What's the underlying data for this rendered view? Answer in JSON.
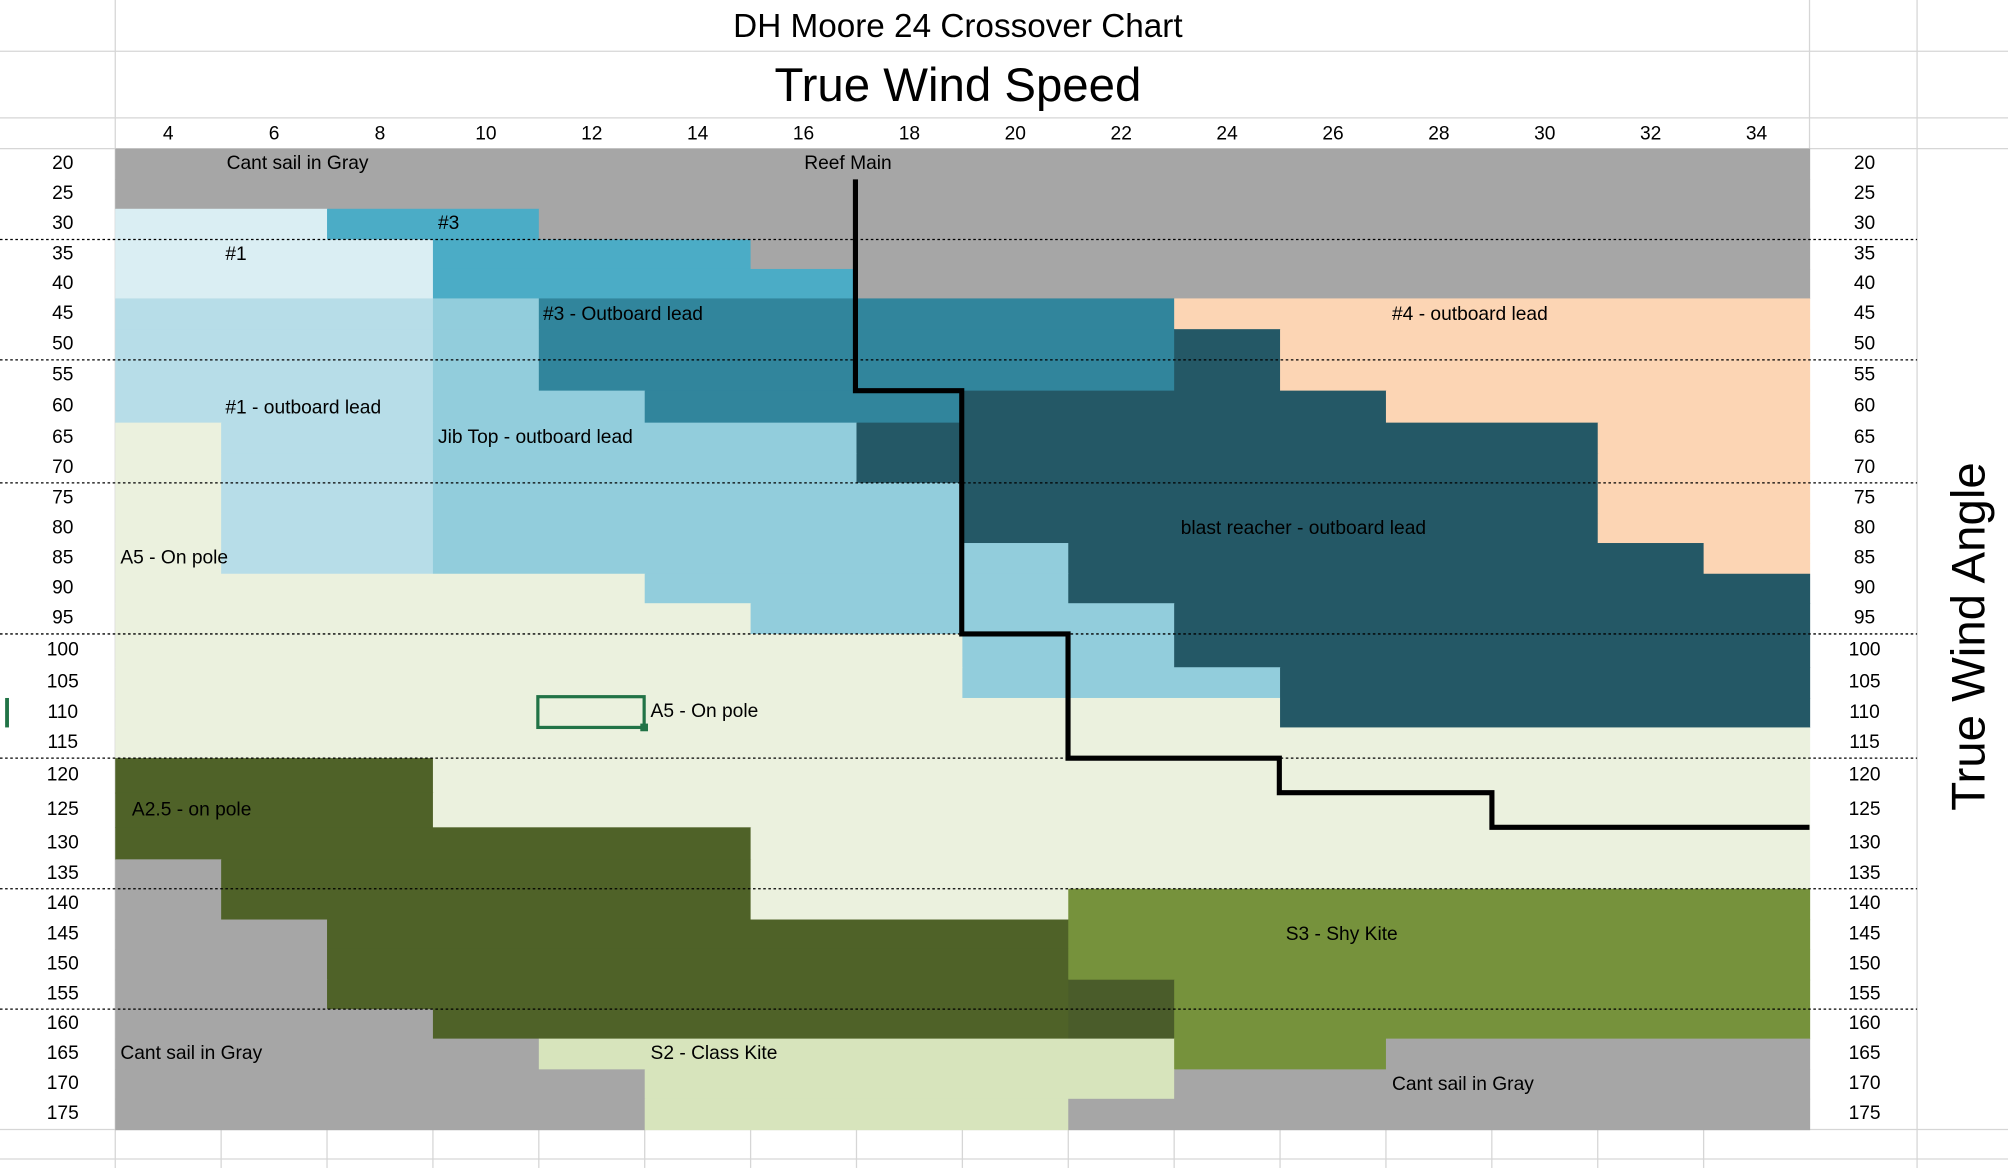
{
  "header": {
    "title": "DH Moore 24 Crossover Chart",
    "x_axis_title": "True Wind Speed",
    "y_axis_title": "True Wind Angle"
  },
  "wind_speeds": [
    4,
    6,
    8,
    10,
    12,
    14,
    16,
    18,
    20,
    22,
    24,
    26,
    28,
    30,
    32,
    34
  ],
  "wind_angles": [
    20,
    25,
    30,
    35,
    40,
    45,
    50,
    55,
    60,
    65,
    70,
    75,
    80,
    85,
    90,
    95,
    100,
    105,
    110,
    115,
    120,
    125,
    130,
    135,
    140,
    145,
    150,
    155,
    160,
    165,
    170,
    175
  ],
  "region_labels": [
    "Cant sail in Gray",
    "Reef Main",
    "#3",
    "#1",
    "#3 - Outboard lead",
    "#4 - outboard lead",
    "#1 - outboard lead",
    "Jib Top - outboard lead",
    "A5 - On pole",
    "blast reacher - outboard lead",
    "A5 - On pole",
    "A2.5 - on pole",
    "S3 - Shy Kite",
    "Cant sail in Gray",
    "S2 - Class Kite",
    "Cant sail in Gray"
  ]
}
